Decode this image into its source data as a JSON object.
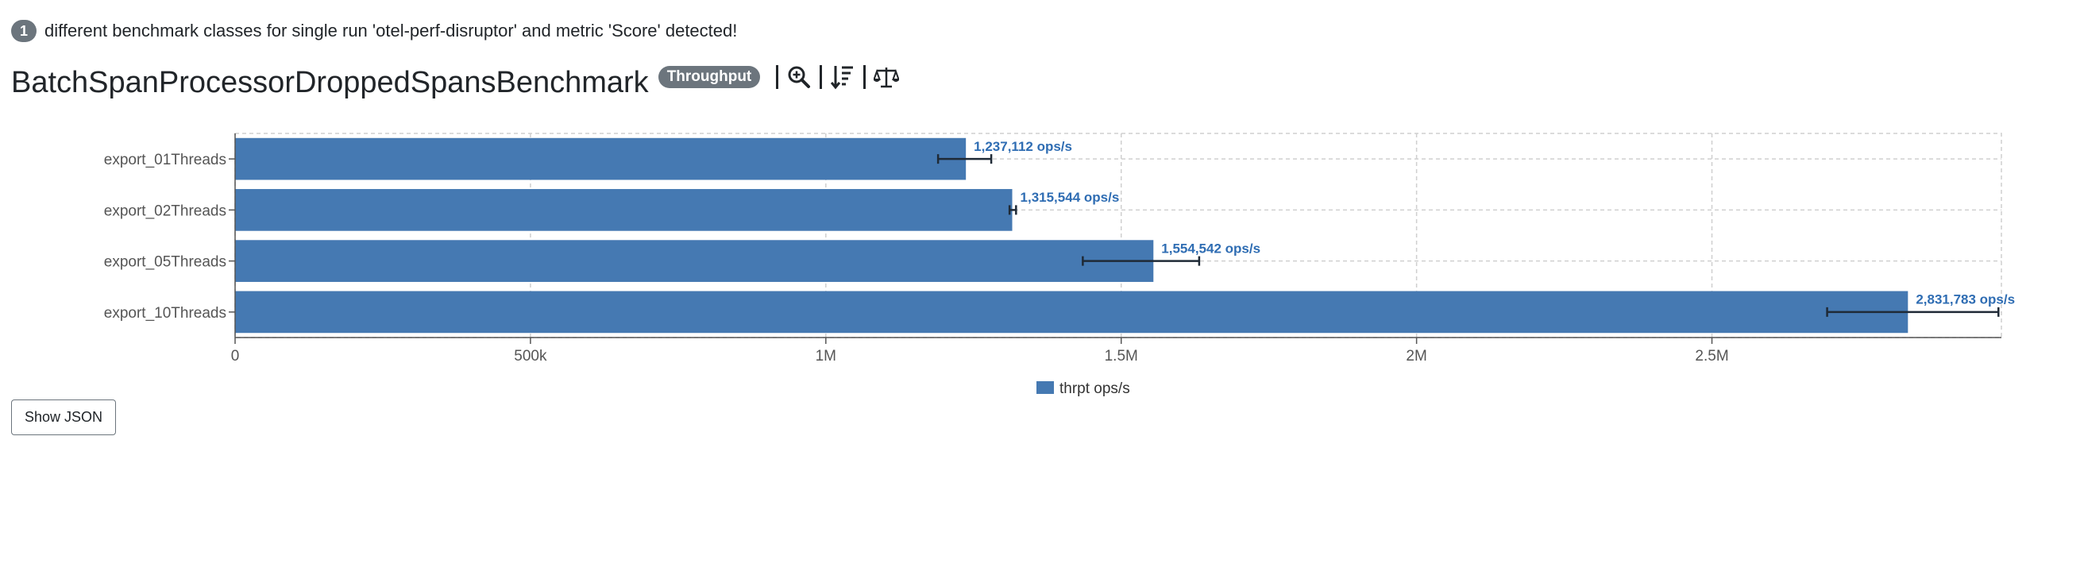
{
  "notice": {
    "count": "1",
    "text": "different benchmark classes for single run 'otel-perf-disruptor' and metric 'Score' detected!"
  },
  "header": {
    "title": "BatchSpanProcessorDroppedSpansBenchmark",
    "mode_badge": "Throughput",
    "tools": [
      "zoom-icon",
      "sort-icon",
      "compare-icon"
    ]
  },
  "show_json_label": "Show JSON",
  "chart_data": {
    "type": "bar",
    "orientation": "horizontal",
    "title": "",
    "xlabel": "",
    "ylabel": "",
    "categories": [
      "export_01Threads",
      "export_02Threads",
      "export_05Threads",
      "export_10Threads"
    ],
    "series": [
      {
        "name": "thrpt ops/s",
        "color": "#4579b2",
        "values": [
          1237112,
          1315544,
          1554542,
          2831783
        ],
        "labels": [
          "1,237,112 ops/s",
          "1,315,544 ops/s",
          "1,554,542 ops/s",
          "2,831,783 ops/s"
        ],
        "error_low": [
          1190000,
          1311000,
          1435000,
          2695000
        ],
        "error_high": [
          1280000,
          1322000,
          1632000,
          2985000
        ]
      }
    ],
    "xlim": [
      0,
      2990000
    ],
    "xticks": [
      0,
      500000,
      1000000,
      1500000,
      2000000,
      2500000
    ],
    "xtick_labels": [
      "0",
      "500k",
      "1M",
      "1.5M",
      "2M",
      "2.5M"
    ],
    "grid": true,
    "legend_position": "bottom",
    "label_color": "#2f6db3"
  }
}
